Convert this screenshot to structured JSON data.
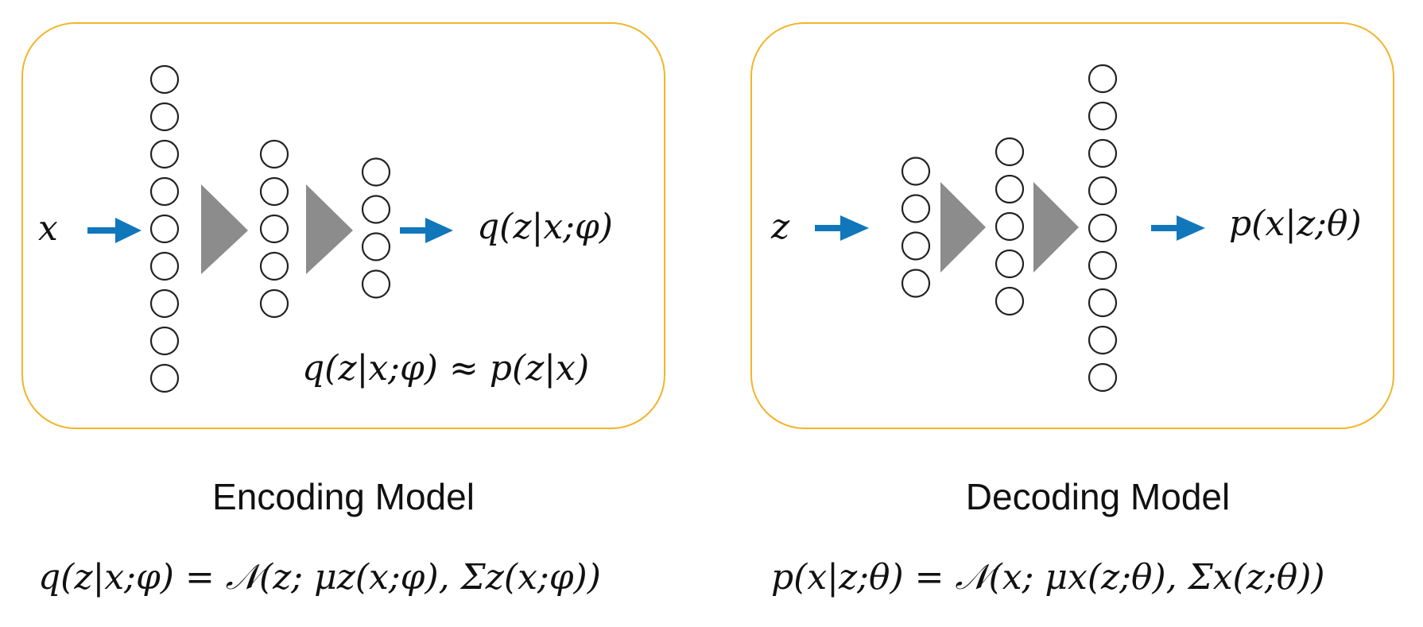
{
  "encoder": {
    "input_label": "x",
    "output_label": "q(z|x;φ)",
    "approx_label": "q(z|x;φ) ≈ p(z|x)",
    "title": "Encoding Model",
    "formula": "q(z|x;φ) = 𝒩(z; μz(x;φ), Σz(x;φ))",
    "layers": [
      9,
      5,
      4
    ]
  },
  "decoder": {
    "input_label": "z",
    "output_label": "p(x|z;θ)",
    "title": "Decoding Model",
    "formula": "p(x|z;θ) = 𝒩(x; μx(z;θ), Σx(z;θ))",
    "layers": [
      4,
      5,
      9
    ]
  },
  "colors": {
    "panel_border": "#f2b52a",
    "arrow": "#1177bb",
    "triangle": "#8c8c8c"
  }
}
